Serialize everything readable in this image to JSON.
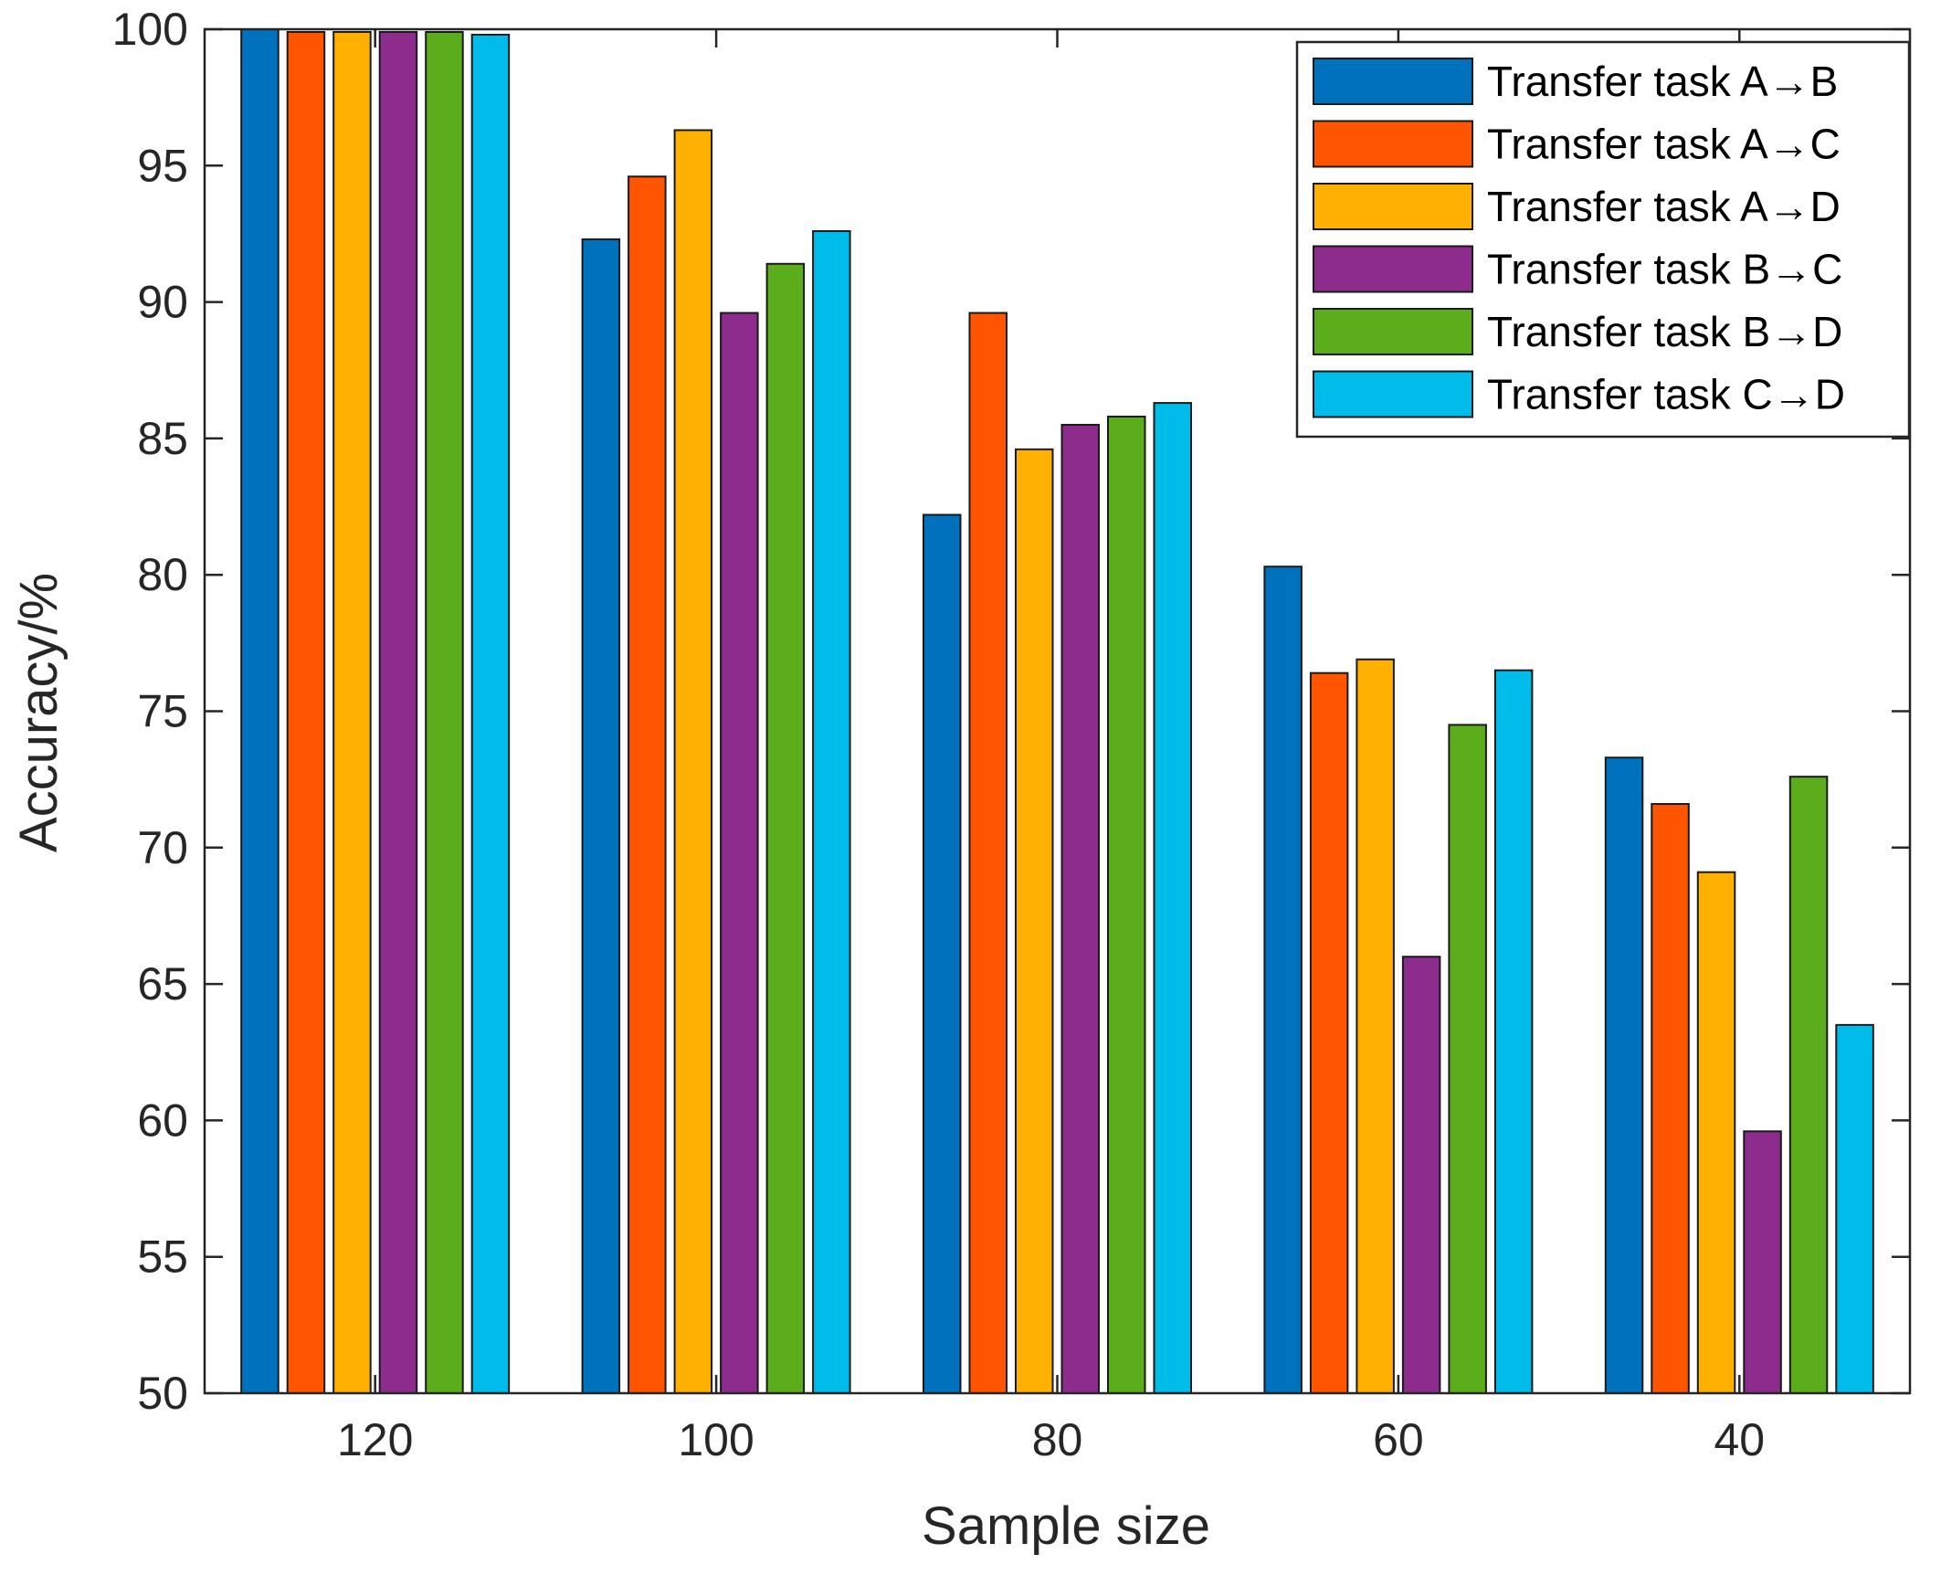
{
  "chart_data": {
    "type": "bar",
    "xlabel": "Sample size",
    "ylabel": "Accuracy/%",
    "ylim": [
      50,
      100
    ],
    "yticks": [
      "50",
      "55",
      "60",
      "65",
      "70",
      "75",
      "80",
      "85",
      "90",
      "95",
      "100"
    ],
    "categories": [
      "120",
      "100",
      "80",
      "60",
      "40"
    ],
    "legend_position": "top-right",
    "series": [
      {
        "name": "Transfer task A→B",
        "color": "#0072BD",
        "values": [
          100,
          92.3,
          82.2,
          80.3,
          73.3
        ]
      },
      {
        "name": "Transfer task A→C",
        "color": "#FF5500",
        "values": [
          99.9,
          94.6,
          89.6,
          76.4,
          71.6
        ]
      },
      {
        "name": "Transfer task A→D",
        "color": "#FFB000",
        "values": [
          99.9,
          96.3,
          84.6,
          76.9,
          69.1
        ]
      },
      {
        "name": "Transfer task B→C",
        "color": "#8E2C8E",
        "values": [
          99.9,
          89.6,
          85.5,
          66.0,
          59.6
        ]
      },
      {
        "name": "Transfer task B→D",
        "color": "#5BAD1C",
        "values": [
          99.9,
          91.4,
          85.8,
          74.5,
          72.6
        ]
      },
      {
        "name": "Transfer task C→D",
        "color": "#00BCEB",
        "values": [
          99.8,
          92.6,
          86.3,
          76.5,
          63.5
        ]
      }
    ]
  }
}
